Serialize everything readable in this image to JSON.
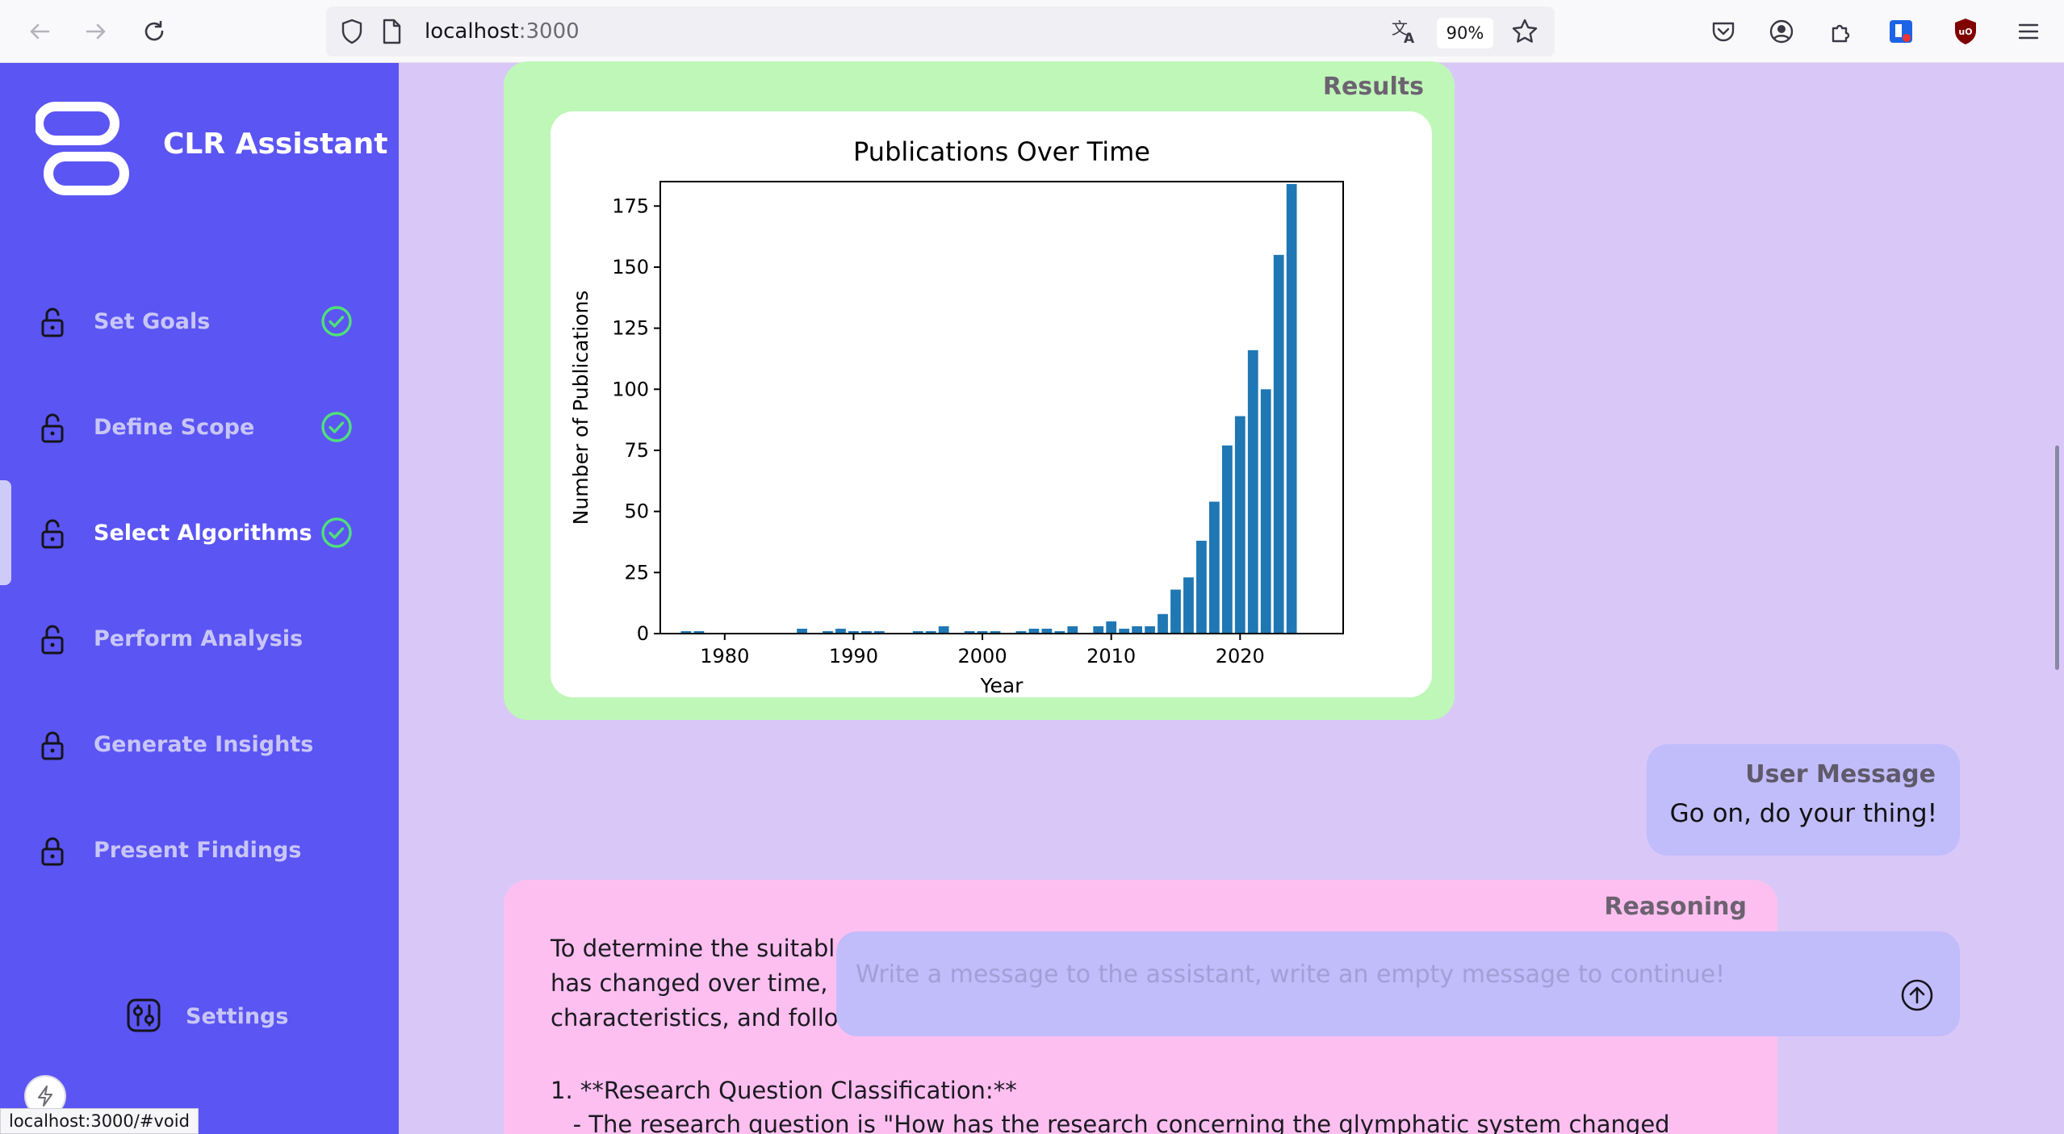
{
  "browser": {
    "url_host": "localhost",
    "url_port": ":3000",
    "zoom": "90%",
    "status_url": "localhost:3000/#void"
  },
  "sidebar": {
    "app_title": "CLR Assistant",
    "items": [
      {
        "label": "Set Goals",
        "completed": true,
        "unlocked": true
      },
      {
        "label": "Define Scope",
        "completed": true,
        "unlocked": true
      },
      {
        "label": "Select Algorithms",
        "completed": true,
        "unlocked": true,
        "active": true
      },
      {
        "label": "Perform Analysis",
        "completed": false,
        "unlocked": true
      },
      {
        "label": "Generate Insights",
        "completed": false,
        "unlocked": false
      },
      {
        "label": "Present Findings",
        "completed": false,
        "unlocked": false
      }
    ],
    "settings_label": "Settings"
  },
  "results": {
    "heading": "Results"
  },
  "chart_data": {
    "type": "bar",
    "title": "Publications Over Time",
    "xlabel": "Year",
    "ylabel": "Number of Publications",
    "xlim": [
      1975,
      2028
    ],
    "ylim": [
      0,
      185
    ],
    "x_ticks": [
      1980,
      1990,
      2000,
      2010,
      2020
    ],
    "y_ticks": [
      0,
      25,
      50,
      75,
      100,
      125,
      150,
      175
    ],
    "grid": false,
    "color": "#1f77b4",
    "x": [
      1977,
      1978,
      1986,
      1988,
      1989,
      1990,
      1991,
      1992,
      1995,
      1996,
      1997,
      1999,
      2000,
      2001,
      2003,
      2004,
      2005,
      2006,
      2007,
      2009,
      2010,
      2011,
      2012,
      2013,
      2014,
      2015,
      2016,
      2017,
      2018,
      2019,
      2020,
      2021,
      2022,
      2023,
      2024
    ],
    "values": [
      1,
      1,
      2,
      1,
      2,
      1,
      1,
      1,
      1,
      1,
      3,
      1,
      1,
      1,
      1,
      2,
      2,
      1,
      3,
      3,
      5,
      2,
      3,
      3,
      8,
      18,
      23,
      38,
      54,
      77,
      89,
      116,
      100,
      155,
      184
    ]
  },
  "user_message": {
    "title": "User Message",
    "body": "Go on, do your thing!"
  },
  "reasoning": {
    "heading": "Reasoning",
    "lines": [
      "To determine the suitabl",
      "has changed over time,",
      "characteristics, and follo",
      "1. **Research Question Classification:**",
      "   - The research question is \"How has the research concerning the glymphatic system changed"
    ]
  },
  "composer": {
    "placeholder": "Write a message to the assistant, write an empty message to continue!"
  },
  "colors": {
    "sidebar": "#5b55f3",
    "results_card": "#bff7b8",
    "reasoning_card": "#fdbff0",
    "user_bubble": "#c1bcfa",
    "check_green": "#4fe07a"
  }
}
